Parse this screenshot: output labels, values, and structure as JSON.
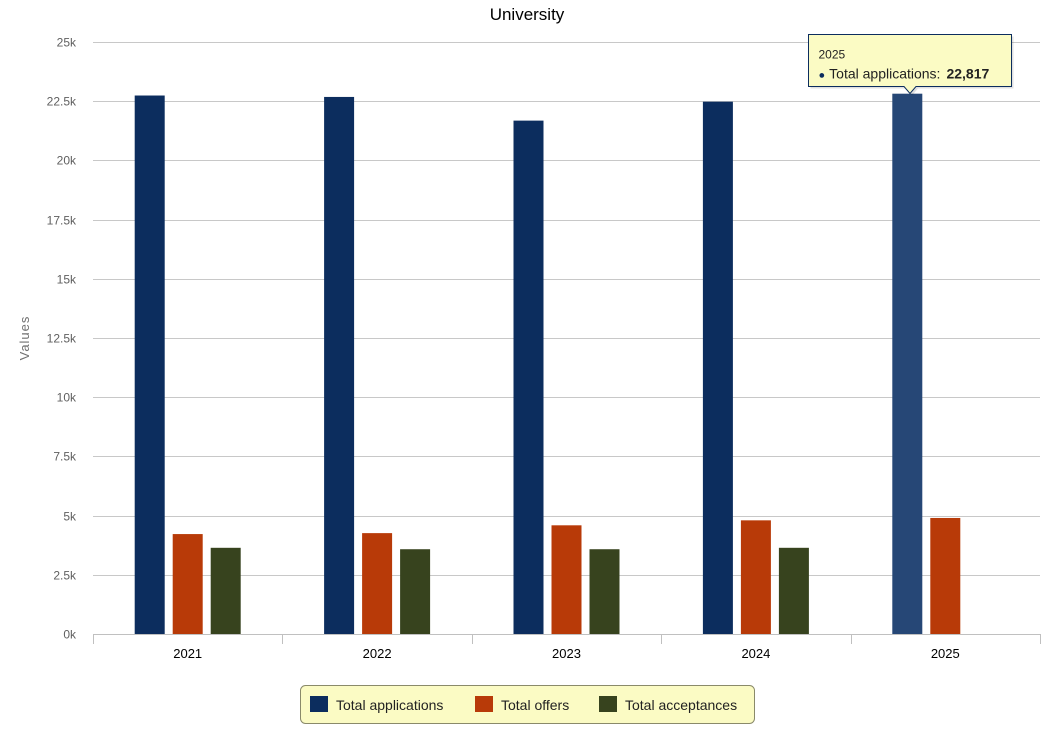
{
  "chart_data": {
    "type": "bar",
    "title": "University",
    "xlabel": "",
    "ylabel": "Values",
    "categories": [
      "2021",
      "2022",
      "2023",
      "2024",
      "2025"
    ],
    "series": [
      {
        "name": "Total applications",
        "color": "#0c2d5e",
        "values": [
          22740,
          22680,
          21680,
          22480,
          22817
        ]
      },
      {
        "name": "Total offers",
        "color": "#b83a08",
        "values": [
          4220,
          4260,
          4590,
          4800,
          4900
        ]
      },
      {
        "name": "Total acceptances",
        "color": "#37431e",
        "values": [
          3640,
          3580,
          3580,
          3640,
          null
        ]
      }
    ],
    "ylim": [
      0,
      25000
    ],
    "yticks": [
      0,
      2500,
      5000,
      7500,
      10000,
      12500,
      15000,
      17500,
      20000,
      22500,
      25000
    ],
    "ytick_labels": [
      "0k",
      "2.5k",
      "5k",
      "7.5k",
      "10k",
      "12.5k",
      "15k",
      "17.5k",
      "20k",
      "22.5k",
      "25k"
    ],
    "grid": true,
    "legend_position": "bottom-center",
    "highlight": {
      "category_index": 4,
      "series_index": 0,
      "color": "#264776"
    },
    "tooltip": {
      "header": "2025",
      "bullet": "●",
      "label": "Total applications:",
      "value": "22,817"
    },
    "colors": {
      "tooltip_bg": "#fbfbc4",
      "tooltip_border": "#0c2d5e",
      "legend_bg": "#fbfbc4",
      "legend_border": "#8a8a6a",
      "grid": "#c8c8c8",
      "axis": "#c0c0c0"
    }
  }
}
